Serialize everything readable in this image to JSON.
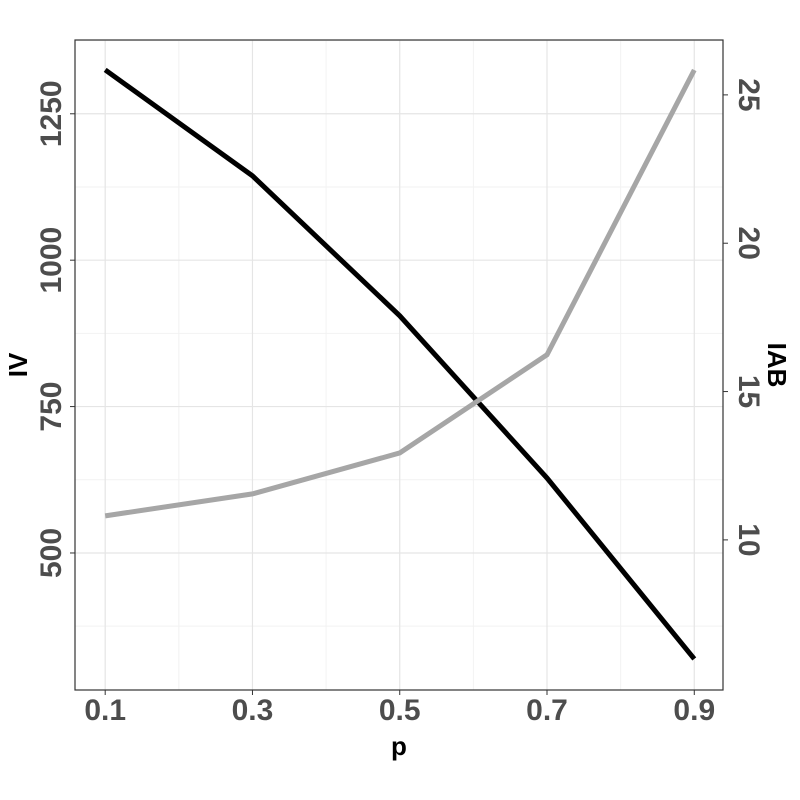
{
  "chart_data": {
    "type": "line",
    "x_label": "p",
    "y_label": "IV",
    "y2_label": "IAB",
    "x": [
      0.1,
      0.3,
      0.5,
      0.7,
      0.9
    ],
    "xlim": [
      0.059,
      0.939
    ],
    "xticks": [
      0.1,
      0.3,
      0.5,
      0.7,
      0.9
    ],
    "ylim": [
      266,
      1376
    ],
    "yticks": [
      500,
      750,
      1000,
      1250
    ],
    "y2lim": [
      4.94,
      26.85
    ],
    "y2ticks": [
      10,
      15,
      20,
      25
    ],
    "grid": true,
    "series": [
      {
        "color": "#000000",
        "values": [
          1325,
          1144,
          905,
          628,
          319
        ]
      },
      {
        "color": "#a6a6a6",
        "axis": "y2",
        "values": [
          10.81,
          11.55,
          12.93,
          16.24,
          25.84
        ]
      }
    ]
  }
}
